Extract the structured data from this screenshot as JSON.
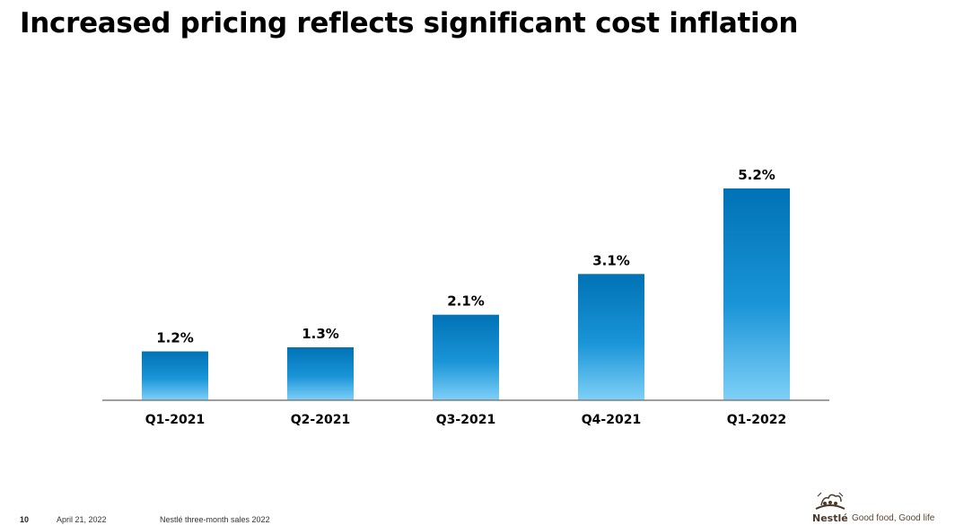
{
  "title": "Increased pricing reflects significant cost inflation",
  "chart_data": {
    "type": "bar",
    "categories": [
      "Q1-2021",
      "Q2-2021",
      "Q3-2021",
      "Q4-2021",
      "Q1-2022"
    ],
    "values": [
      1.2,
      1.3,
      2.1,
      3.1,
      5.2
    ],
    "value_labels": [
      "1.2%",
      "1.3%",
      "2.1%",
      "3.1%",
      "5.2%"
    ],
    "ylim": [
      0,
      5.2
    ],
    "grid": false,
    "bar_color_top": "#0072b5",
    "bar_color_bottom": "#7fd0f7"
  },
  "footer": {
    "page_number": "10",
    "date": "April 21, 2022",
    "source": "Nestlé three-month sales 2022"
  },
  "brand": {
    "name": "Nestlé",
    "tagline": "Good food, Good life"
  }
}
